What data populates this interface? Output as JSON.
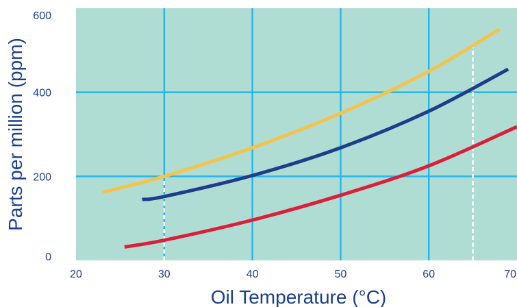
{
  "chart_data": {
    "type": "line",
    "title": "",
    "xlabel": "Oil Temperature (°C)",
    "ylabel": "Parts per million (ppm)",
    "xlim": [
      20,
      70
    ],
    "ylim": [
      0,
      600
    ],
    "x_ticks": [
      20,
      30,
      40,
      50,
      60,
      70
    ],
    "y_ticks": [
      0,
      200,
      400,
      600
    ],
    "grid": true,
    "legend": "none",
    "background_color": "#b0ddd3",
    "grid_color": "#27b6ea",
    "series": [
      {
        "color": "#f2c44e",
        "points": [
          [
            23,
            162
          ],
          [
            30,
            200
          ],
          [
            40,
            268
          ],
          [
            50,
            350
          ],
          [
            60,
            450
          ],
          [
            68,
            550
          ]
        ]
      },
      {
        "color": "#1f3d8a",
        "points": [
          [
            27.5,
            145
          ],
          [
            30,
            152
          ],
          [
            40,
            202
          ],
          [
            50,
            268
          ],
          [
            60,
            355
          ],
          [
            69,
            455
          ]
        ]
      },
      {
        "color": "#d9203a",
        "points": [
          [
            25.5,
            32
          ],
          [
            30,
            48
          ],
          [
            40,
            96
          ],
          [
            50,
            155
          ],
          [
            60,
            225
          ],
          [
            70,
            318
          ]
        ]
      }
    ],
    "reference_lines": [
      {
        "x": 30,
        "y_from": 0,
        "y_to": 200,
        "color": "#ffffff",
        "style": "dashed"
      },
      {
        "x": 65,
        "y_from": 0,
        "y_to": 520,
        "color": "#ffffff",
        "style": "dashed"
      }
    ]
  }
}
